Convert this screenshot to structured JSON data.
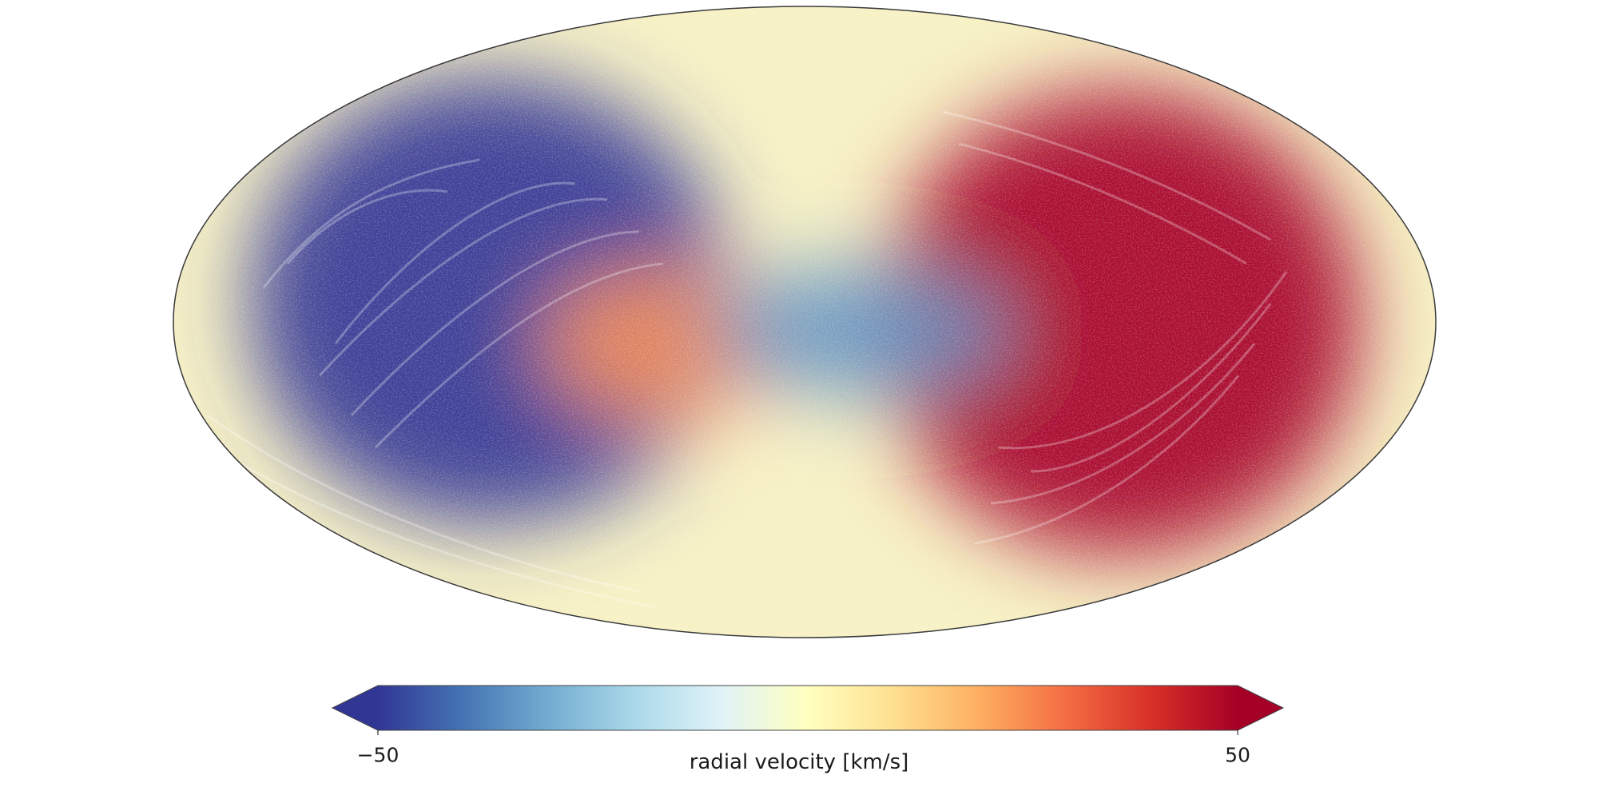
{
  "chart_data": {
    "type": "heatmap",
    "projection": "mollweide all-sky",
    "title": "",
    "colormap": {
      "name": "RdYlBu_r",
      "stops": [
        "#313695",
        "#4575b4",
        "#74add1",
        "#abd9e9",
        "#e0f3f8",
        "#ffffbf",
        "#fee090",
        "#fdae61",
        "#f46d43",
        "#d73027",
        "#a50026"
      ]
    },
    "colorbar": {
      "label": "radial velocity [km/s]",
      "min": -50,
      "max": 50,
      "tick_labels": [
        "−50",
        "50"
      ],
      "extend": "both",
      "orientation": "horizontal",
      "position": "bottom"
    },
    "features": [
      {
        "name": "approaching lobe (left)",
        "value": -50,
        "lon_deg": 90,
        "lat_deg": 5
      },
      {
        "name": "receding lobe (right)",
        "value": 50,
        "lon_deg": -90,
        "lat_deg": 0
      },
      {
        "name": "central warm patch",
        "value": 25,
        "lon_deg": 40,
        "lat_deg": -5
      },
      {
        "name": "central blue stripe",
        "value": -35,
        "lon_deg": -15,
        "lat_deg": -2
      }
    ],
    "grid": false
  }
}
